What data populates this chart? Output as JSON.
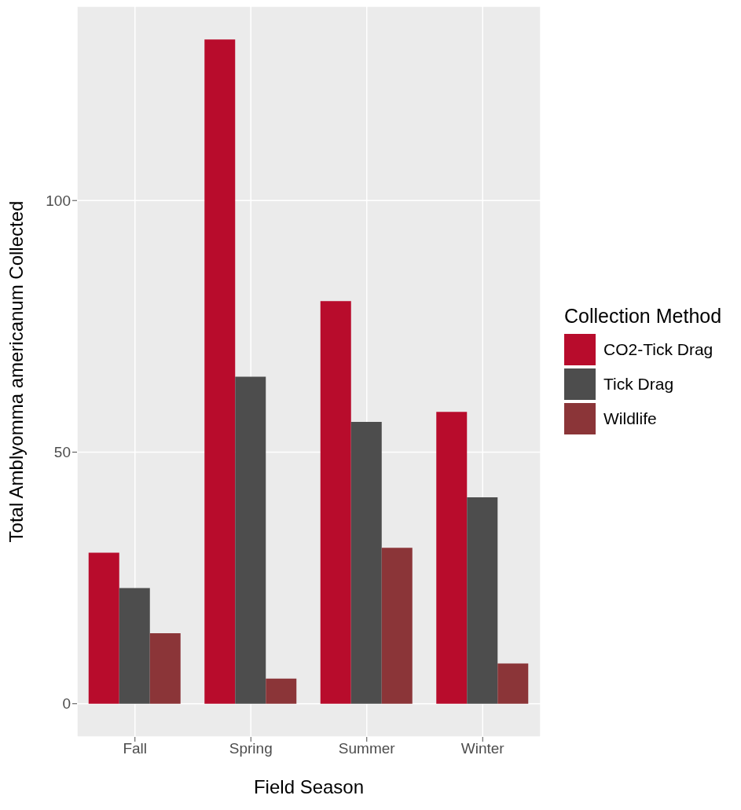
{
  "chart_data": {
    "type": "bar",
    "xlabel": "Field Season",
    "ylabel": "Total Amblyomma americanum Collected",
    "legend_title": "Collection Method",
    "categories": [
      "Fall",
      "Spring",
      "Summer",
      "Winter"
    ],
    "series": [
      {
        "name": "CO2-Tick Drag",
        "color": "#b80c2c",
        "values": [
          30,
          132,
          80,
          58
        ]
      },
      {
        "name": "Tick Drag",
        "color": "#4d4d4d",
        "values": [
          23,
          65,
          56,
          41
        ]
      },
      {
        "name": "Wildlife",
        "color": "#8b3538",
        "values": [
          14,
          5,
          31,
          8
        ]
      }
    ],
    "ylim": [
      -6.6,
      138.6
    ],
    "yticks": [
      0,
      50,
      100
    ],
    "grid": true,
    "legend": "right"
  }
}
